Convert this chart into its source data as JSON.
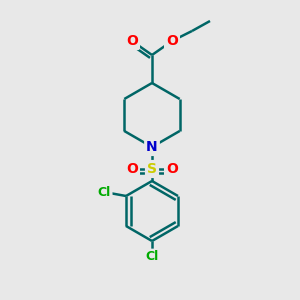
{
  "background_color": "#e8e8e8",
  "atom_colors": {
    "C": "#000000",
    "N": "#0000cc",
    "O": "#ff0000",
    "S": "#cccc00",
    "Cl": "#00aa00",
    "bond": "#006666"
  },
  "bond_width": 1.8,
  "figsize": [
    3.0,
    3.0
  ],
  "dpi": 100,
  "xlim": [
    0,
    300
  ],
  "ylim": [
    0,
    300
  ]
}
